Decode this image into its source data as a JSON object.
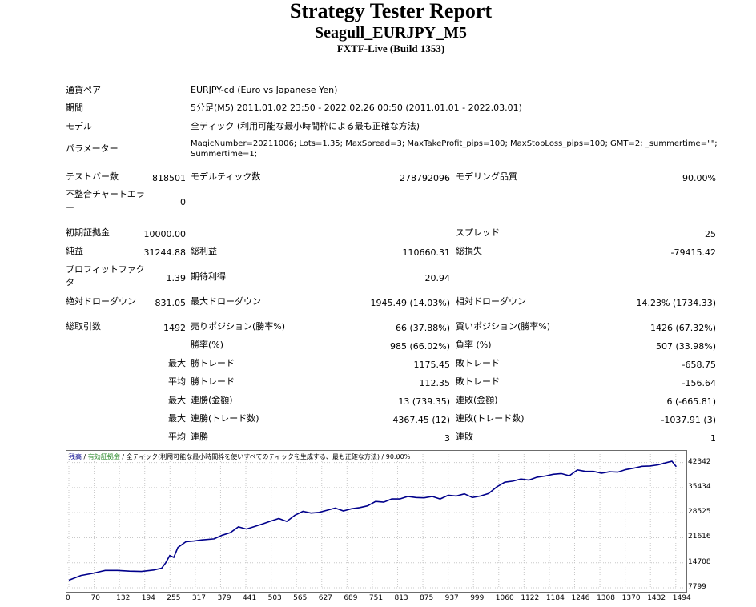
{
  "header": {
    "title": "Strategy Tester Report",
    "subtitle": "Seagull_EURJPY_M5",
    "build": "FXTF-Live (Build 1353)"
  },
  "info": {
    "symbol_label": "通貨ペア",
    "symbol_value": "EURJPY-cd (Euro vs Japanese Yen)",
    "period_label": "期間",
    "period_value": "5分足(M5) 2011.01.02 23:50 - 2022.02.26 00:50 (2011.01.01 - 2022.03.01)",
    "model_label": "モデル",
    "model_value": "全ティック (利用可能な最小時間枠による最も正確な方法)",
    "params_label": "パラメーター",
    "params_value_1": "MagicNumber=20211006; Lots=1.35; MaxSpread=3; MaxTakeProfit_pips=100; MaxStopLoss_pips=100; GMT=2; _summertime=\"\";",
    "params_value_2": "Summertime=1;"
  },
  "stats": {
    "bars_label": "テストバー数",
    "bars_value": "818501",
    "ticks_label": "モデルティック数",
    "ticks_value": "278792096",
    "quality_label": "モデリング品質",
    "quality_value": "90.00%",
    "mismatch_label_1": "不整合チャートエラ",
    "mismatch_label_2": "ー",
    "mismatch_value": "0",
    "deposit_label": "初期証拠金",
    "deposit_value": "10000.00",
    "spread_label": "スプレッド",
    "spread_value": "25",
    "net_label": "純益",
    "net_value": "31244.88",
    "gross_profit_label": "総利益",
    "gross_profit_value": "110660.31",
    "gross_loss_label": "総損失",
    "gross_loss_value": "-79415.42",
    "pf_label_1": "プロフィットファク",
    "pf_label_2": "タ",
    "pf_value": "1.39",
    "expected_label": "期待利得",
    "expected_value": "20.94",
    "abs_dd_label": "絶対ドローダウン",
    "abs_dd_value": "831.05",
    "max_dd_label": "最大ドローダウン",
    "max_dd_value": "1945.49 (14.03%)",
    "rel_dd_label": "相対ドローダウン",
    "rel_dd_value": "14.23% (1734.33)",
    "trades_label": "総取引数",
    "trades_value": "1492",
    "short_label": "売りポジション(勝率%)",
    "short_value": "66 (37.88%)",
    "long_label": "買いポジション(勝率%)",
    "long_value": "1426 (67.32%)",
    "win_label": "勝率(%)",
    "win_value": "985 (66.02%)",
    "loss_label": "負率 (%)",
    "loss_value": "507 (33.98%)",
    "max_label": "最大",
    "avg_label": "平均",
    "largest_win_label": "勝トレード",
    "largest_win_value": "1175.45",
    "largest_loss_label": "敗トレード",
    "largest_loss_value": "-658.75",
    "avg_win_label": "勝トレード",
    "avg_win_value": "112.35",
    "avg_loss_label": "敗トレード",
    "avg_loss_value": "-156.64",
    "max_consec_wins_label": "連勝(金額)",
    "max_consec_wins_value": "13 (739.35)",
    "max_consec_losses_label": "連敗(金額)",
    "max_consec_losses_value": "6 (-665.81)",
    "max_consec_profit_label": "連勝(トレード数)",
    "max_consec_profit_value": "4367.45 (12)",
    "max_consec_loss_label": "連敗(トレード数)",
    "max_consec_loss_value": "-1037.91 (3)",
    "avg_consec_wins_label": "連勝",
    "avg_consec_wins_value": "3",
    "avg_consec_losses_label": "連敗",
    "avg_consec_losses_value": "1"
  },
  "chart_data": {
    "type": "line",
    "legend": {
      "balance": "残高",
      "sep1": " / ",
      "equity": "有効証拠金",
      "sep2": " / ",
      "model": "全ティック(利用可能な最小時間枠を使いすべてのティックを生成する、最も正確な方法)",
      "sep3": " / ",
      "quality": "90.00%"
    },
    "colors": {
      "balance": "#00008b",
      "equity": "#2e8b2e",
      "grid": "#c8c8c8"
    },
    "x_ticks": [
      "0",
      "70",
      "132",
      "194",
      "255",
      "317",
      "379",
      "441",
      "503",
      "565",
      "627",
      "689",
      "751",
      "813",
      "875",
      "937",
      "999",
      "1060",
      "1122",
      "1184",
      "1246",
      "1308",
      "1370",
      "1432",
      "1494"
    ],
    "y_ticks": [
      "42342",
      "35434",
      "28525",
      "21616",
      "14708",
      "7799"
    ],
    "xlim": [
      0,
      1520
    ],
    "ylim": [
      7799,
      43800
    ],
    "series": [
      {
        "x": [
          0,
          30,
          60,
          90,
          120,
          150,
          180,
          210,
          230,
          240,
          250,
          260,
          270,
          290,
          310,
          330,
          360,
          380,
          400,
          420,
          440,
          460,
          480,
          500,
          520,
          540,
          560,
          580,
          600,
          620,
          640,
          660,
          680,
          700,
          720,
          740,
          760,
          780,
          800,
          820,
          840,
          860,
          880,
          900,
          920,
          940,
          960,
          980,
          1000,
          1020,
          1040,
          1060,
          1080,
          1100,
          1120,
          1140,
          1160,
          1180,
          1200,
          1220,
          1240,
          1260,
          1280,
          1300,
          1320,
          1340,
          1360,
          1380,
          1400,
          1420,
          1440,
          1460,
          1480,
          1494,
          1505
        ],
        "y": [
          9900,
          11200,
          11800,
          12600,
          12600,
          12400,
          12300,
          12700,
          13200,
          14700,
          16700,
          16200,
          18900,
          20500,
          20700,
          21000,
          21300,
          22300,
          23000,
          24600,
          24000,
          24700,
          25400,
          26200,
          26900,
          26100,
          27800,
          28900,
          28400,
          28600,
          29200,
          29800,
          29000,
          29600,
          29900,
          30400,
          31600,
          31400,
          32300,
          32300,
          33000,
          32700,
          32600,
          33000,
          32300,
          33300,
          33100,
          33700,
          32700,
          33100,
          33800,
          35600,
          36900,
          37200,
          37800,
          37500,
          38300,
          38600,
          39100,
          39300,
          38700,
          40300,
          39900,
          39900,
          39400,
          39800,
          39700,
          40400,
          40800,
          41300,
          41400,
          41700,
          42300,
          42700,
          41200
        ]
      }
    ]
  }
}
